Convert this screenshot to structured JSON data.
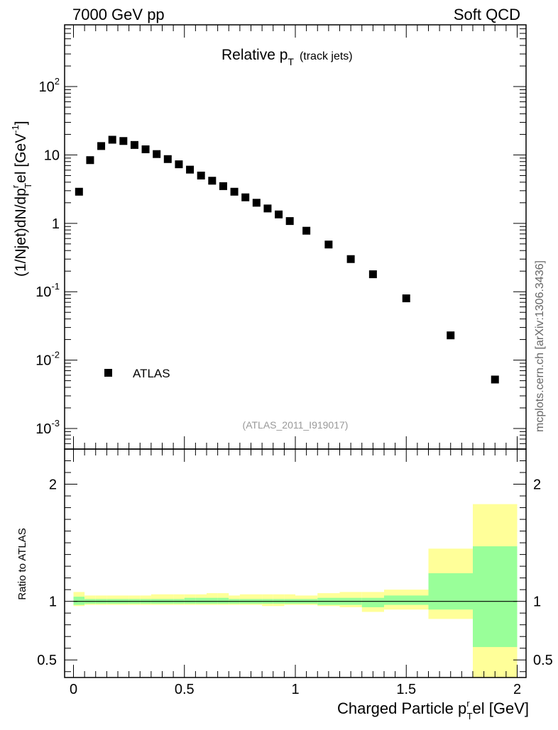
{
  "header": {
    "left": "7000 GeV pp",
    "right": "Soft QCD"
  },
  "watermark": "mcplots.cern.ch [arXiv:1306.3436]",
  "analysis_id": "(ATLAS_2011_I919017)",
  "colors": {
    "band_inner": "#99ff99",
    "band_outer": "#ffff99",
    "marker": "#000000"
  },
  "chart_data": [
    {
      "type": "scatter",
      "title_main": "Relative p",
      "title_sub": "T",
      "title_note": "(track jets)",
      "ylabel": "(1/Njet)dN/dp",
      "ylabel_sup": "r",
      "ylabel_sub": "T",
      "ylabel_tail": "el [GeV",
      "ylabel_unit_sup": "-1",
      "ylabel_close": "]",
      "yscale": "log",
      "ylim": [
        0.0005,
        800
      ],
      "xlim": [
        -0.04,
        2.04
      ],
      "ytick_labels": [
        {
          "base": "10",
          "exp": "-3",
          "value": 0.001
        },
        {
          "base": "10",
          "exp": "-2",
          "value": 0.01
        },
        {
          "base": "10",
          "exp": "-1",
          "value": 0.1
        },
        {
          "base": "1",
          "exp": "",
          "value": 1
        },
        {
          "base": "10",
          "exp": "",
          "value": 10
        },
        {
          "base": "10",
          "exp": "2",
          "value": 100
        }
      ],
      "legend": {
        "entries": [
          "ATLAS"
        ],
        "position": "lower-left"
      },
      "series": [
        {
          "name": "ATLAS",
          "x": [
            0.025,
            0.075,
            0.125,
            0.175,
            0.225,
            0.275,
            0.325,
            0.375,
            0.425,
            0.475,
            0.525,
            0.575,
            0.625,
            0.675,
            0.725,
            0.775,
            0.825,
            0.875,
            0.925,
            0.975,
            1.05,
            1.15,
            1.25,
            1.35,
            1.5,
            1.7,
            1.9
          ],
          "y": [
            2.9,
            8.4,
            13.5,
            16.7,
            16.0,
            14.0,
            12.1,
            10.3,
            8.7,
            7.3,
            6.1,
            5.0,
            4.2,
            3.5,
            2.9,
            2.4,
            2.0,
            1.65,
            1.35,
            1.08,
            0.78,
            0.49,
            0.3,
            0.18,
            0.08,
            0.023,
            0.0052
          ]
        }
      ]
    },
    {
      "type": "area",
      "ylabel": "Ratio to ATLAS",
      "xlabel_main": "Charged Particle p",
      "xlabel_sup": "r",
      "xlabel_sub": "T",
      "xlabel_tail": "el [GeV]",
      "xlim": [
        -0.04,
        2.04
      ],
      "ylim": [
        0.35,
        2.3
      ],
      "xtick_labels": [
        {
          "label": "0",
          "value": 0
        },
        {
          "label": "0.5",
          "value": 0.5
        },
        {
          "label": "1",
          "value": 1
        },
        {
          "label": "1.5",
          "value": 1.5
        },
        {
          "label": "2",
          "value": 2
        }
      ],
      "ytick_labels": [
        {
          "label": "0.5",
          "value": 0.5
        },
        {
          "label": "1",
          "value": 1
        },
        {
          "label": "2",
          "value": 2
        }
      ],
      "reference_line": 1,
      "bins": [
        {
          "lo": 0.0,
          "hi": 0.05,
          "inner": [
            0.97,
            1.04
          ],
          "outer": [
            0.96,
            1.08
          ]
        },
        {
          "lo": 0.05,
          "hi": 0.1,
          "inner": [
            0.98,
            1.02
          ],
          "outer": [
            0.97,
            1.05
          ]
        },
        {
          "lo": 0.1,
          "hi": 0.15,
          "inner": [
            0.98,
            1.02
          ],
          "outer": [
            0.97,
            1.05
          ]
        },
        {
          "lo": 0.15,
          "hi": 0.2,
          "inner": [
            0.98,
            1.02
          ],
          "outer": [
            0.97,
            1.05
          ]
        },
        {
          "lo": 0.2,
          "hi": 0.25,
          "inner": [
            0.98,
            1.02
          ],
          "outer": [
            0.97,
            1.05
          ]
        },
        {
          "lo": 0.25,
          "hi": 0.3,
          "inner": [
            0.98,
            1.02
          ],
          "outer": [
            0.97,
            1.05
          ]
        },
        {
          "lo": 0.3,
          "hi": 0.35,
          "inner": [
            0.98,
            1.02
          ],
          "outer": [
            0.97,
            1.05
          ]
        },
        {
          "lo": 0.35,
          "hi": 0.4,
          "inner": [
            0.98,
            1.02
          ],
          "outer": [
            0.97,
            1.06
          ]
        },
        {
          "lo": 0.4,
          "hi": 0.45,
          "inner": [
            0.98,
            1.02
          ],
          "outer": [
            0.97,
            1.06
          ]
        },
        {
          "lo": 0.45,
          "hi": 0.5,
          "inner": [
            0.98,
            1.02
          ],
          "outer": [
            0.97,
            1.06
          ]
        },
        {
          "lo": 0.5,
          "hi": 0.55,
          "inner": [
            0.98,
            1.03
          ],
          "outer": [
            0.97,
            1.06
          ]
        },
        {
          "lo": 0.55,
          "hi": 0.6,
          "inner": [
            0.98,
            1.03
          ],
          "outer": [
            0.97,
            1.06
          ]
        },
        {
          "lo": 0.6,
          "hi": 0.65,
          "inner": [
            0.98,
            1.03
          ],
          "outer": [
            0.97,
            1.07
          ]
        },
        {
          "lo": 0.65,
          "hi": 0.7,
          "inner": [
            0.98,
            1.03
          ],
          "outer": [
            0.97,
            1.07
          ]
        },
        {
          "lo": 0.7,
          "hi": 0.75,
          "inner": [
            0.98,
            1.02
          ],
          "outer": [
            0.97,
            1.05
          ]
        },
        {
          "lo": 0.75,
          "hi": 0.8,
          "inner": [
            0.98,
            1.02
          ],
          "outer": [
            0.97,
            1.06
          ]
        },
        {
          "lo": 0.8,
          "hi": 0.85,
          "inner": [
            0.98,
            1.02
          ],
          "outer": [
            0.97,
            1.06
          ]
        },
        {
          "lo": 0.85,
          "hi": 0.9,
          "inner": [
            0.98,
            1.02
          ],
          "outer": [
            0.96,
            1.06
          ]
        },
        {
          "lo": 0.9,
          "hi": 0.95,
          "inner": [
            0.98,
            1.02
          ],
          "outer": [
            0.96,
            1.06
          ]
        },
        {
          "lo": 0.95,
          "hi": 1.0,
          "inner": [
            0.98,
            1.02
          ],
          "outer": [
            0.97,
            1.06
          ]
        },
        {
          "lo": 1.0,
          "hi": 1.1,
          "inner": [
            0.98,
            1.02
          ],
          "outer": [
            0.97,
            1.05
          ]
        },
        {
          "lo": 1.1,
          "hi": 1.2,
          "inner": [
            0.97,
            1.03
          ],
          "outer": [
            0.96,
            1.07
          ]
        },
        {
          "lo": 1.2,
          "hi": 1.3,
          "inner": [
            0.97,
            1.03
          ],
          "outer": [
            0.95,
            1.08
          ]
        },
        {
          "lo": 1.3,
          "hi": 1.4,
          "inner": [
            0.95,
            1.03
          ],
          "outer": [
            0.91,
            1.08
          ]
        },
        {
          "lo": 1.4,
          "hi": 1.6,
          "inner": [
            0.97,
            1.05
          ],
          "outer": [
            0.93,
            1.1
          ]
        },
        {
          "lo": 1.6,
          "hi": 1.8,
          "inner": [
            0.93,
            1.24
          ],
          "outer": [
            0.85,
            1.45
          ]
        },
        {
          "lo": 1.8,
          "hi": 2.0,
          "inner": [
            0.61,
            1.47
          ],
          "outer": [
            0.35,
            1.83
          ]
        }
      ]
    }
  ]
}
